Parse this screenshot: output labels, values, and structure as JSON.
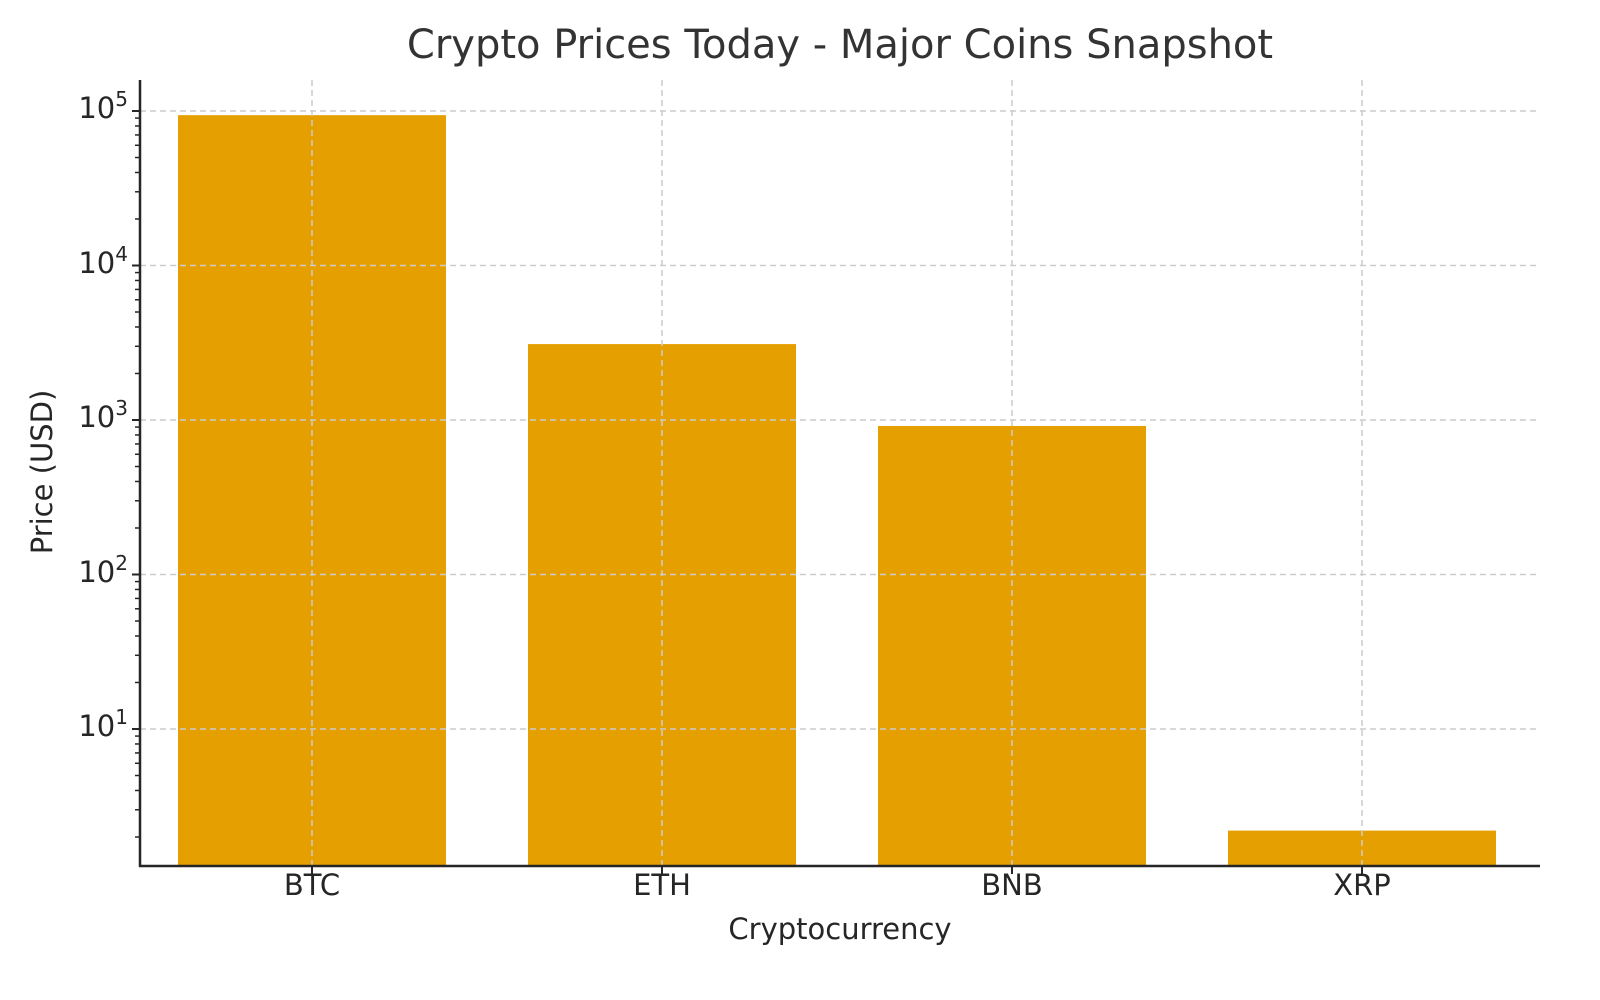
{
  "chart_data": {
    "type": "bar",
    "title": "Crypto Prices Today - Major Coins Snapshot",
    "xlabel": "Cryptocurrency",
    "ylabel": "Price (USD)",
    "yscale": "log",
    "categories": [
      "BTC",
      "ETH",
      "BNB",
      "XRP"
    ],
    "values": [
      94000,
      3100,
      915,
      2.2
    ],
    "ylim": [
      1.3,
      150000
    ],
    "yticks": [
      {
        "base": "10",
        "exp": "1",
        "value": 10
      },
      {
        "base": "10",
        "exp": "2",
        "value": 100
      },
      {
        "base": "10",
        "exp": "3",
        "value": 1000
      },
      {
        "base": "10",
        "exp": "4",
        "value": 10000
      },
      {
        "base": "10",
        "exp": "5",
        "value": 100000
      }
    ],
    "grid": true,
    "grid_style": "dashed",
    "legend": null,
    "bar_color": "#E69F00"
  }
}
